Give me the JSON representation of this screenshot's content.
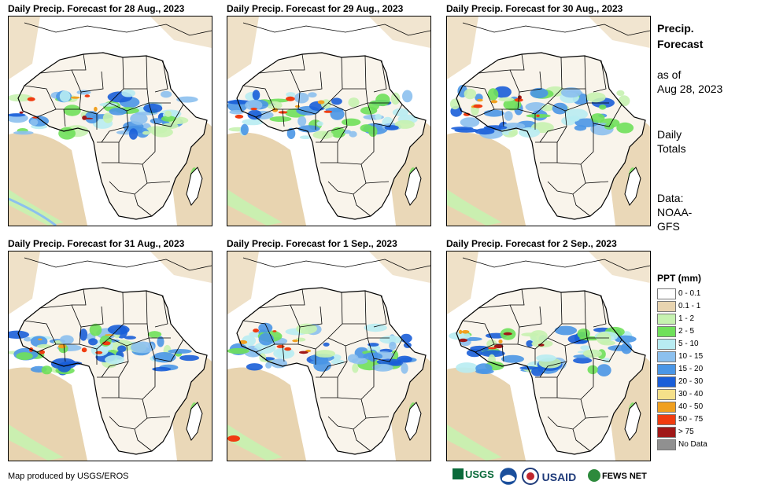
{
  "panels": [
    {
      "title": "Daily Precip. Forecast for 28 Aug., 2023",
      "variant": 0
    },
    {
      "title": "Daily Precip. Forecast for 29 Aug., 2023",
      "variant": 1
    },
    {
      "title": "Daily Precip. Forecast for 30 Aug., 2023",
      "variant": 2
    },
    {
      "title": "Daily Precip. Forecast for 31 Aug., 2023",
      "variant": 3
    },
    {
      "title": "Daily Precip. Forecast for 1 Sep., 2023",
      "variant": 4
    },
    {
      "title": "Daily Precip. Forecast for 2 Sep., 2023",
      "variant": 5
    }
  ],
  "side": {
    "title_line1": "Precip.",
    "title_line2": "Forecast",
    "asof_line1": "as of",
    "asof_line2": "Aug 28, 2023",
    "totals_line1": "Daily",
    "totals_line2": "Totals",
    "data_line1": "Data:",
    "data_line2": "NOAA-",
    "data_line3": "GFS"
  },
  "legend": {
    "title": "PPT (mm)",
    "items": [
      {
        "label": "0 - 0.1",
        "color": "#ffffff"
      },
      {
        "label": "0.1 - 1",
        "color": "#e8d4b0"
      },
      {
        "label": "1 - 2",
        "color": "#c6f2b0"
      },
      {
        "label": "2 - 5",
        "color": "#6fe05a"
      },
      {
        "label": "5 - 10",
        "color": "#b8ecf2"
      },
      {
        "label": "10 - 15",
        "color": "#8cc0ee"
      },
      {
        "label": "15 - 20",
        "color": "#4a96e6"
      },
      {
        "label": "20 - 30",
        "color": "#1a5ed8"
      },
      {
        "label": "30 - 40",
        "color": "#f5e08a"
      },
      {
        "label": "40 - 50",
        "color": "#f0a020"
      },
      {
        "label": "50 - 75",
        "color": "#f03c10"
      },
      {
        "label": "> 75",
        "color": "#a01818"
      },
      {
        "label": "No Data",
        "color": "#909090"
      }
    ]
  },
  "footer": {
    "credit": "Map produced by USGS/EROS"
  },
  "logos": {
    "usgs": "USGS",
    "noaa": "NOAA",
    "usaid": "USAID",
    "fews": "FEWS NET"
  }
}
